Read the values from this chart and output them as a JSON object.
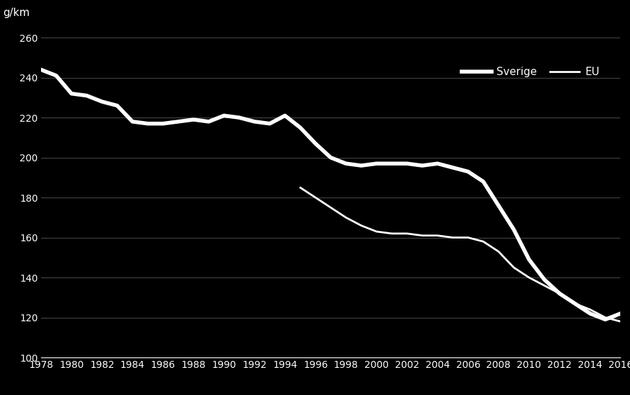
{
  "sverige": {
    "years": [
      1978,
      1979,
      1980,
      1981,
      1982,
      1983,
      1984,
      1985,
      1986,
      1987,
      1988,
      1989,
      1990,
      1991,
      1992,
      1993,
      1994,
      1995,
      1996,
      1997,
      1998,
      1999,
      2000,
      2001,
      2002,
      2003,
      2004,
      2005,
      2006,
      2007,
      2008,
      2009,
      2010,
      2011,
      2012,
      2013,
      2014,
      2015,
      2016
    ],
    "values": [
      244,
      241,
      232,
      231,
      228,
      226,
      218,
      217,
      217,
      218,
      219,
      218,
      221,
      220,
      218,
      217,
      221,
      215,
      207,
      200,
      197,
      196,
      197,
      197,
      197,
      196,
      197,
      195,
      193,
      188,
      176,
      164,
      149,
      139,
      132,
      127,
      122,
      119,
      122
    ]
  },
  "eu": {
    "years": [
      1995,
      1996,
      1997,
      1998,
      1999,
      2000,
      2001,
      2002,
      2003,
      2004,
      2005,
      2006,
      2007,
      2008,
      2009,
      2010,
      2011,
      2012,
      2013,
      2014,
      2015,
      2016
    ],
    "values": [
      185,
      180,
      175,
      170,
      166,
      163,
      162,
      162,
      161,
      161,
      160,
      160,
      158,
      153,
      145,
      140,
      136,
      132,
      127,
      124,
      120,
      118
    ]
  },
  "background_color": "#000000",
  "line_color_sverige": "#ffffff",
  "line_color_eu": "#ffffff",
  "ylabel": "g/km",
  "ylim": [
    100,
    265
  ],
  "xlim": [
    1978,
    2016
  ],
  "yticks": [
    100,
    120,
    140,
    160,
    180,
    200,
    220,
    240,
    260
  ],
  "xticks": [
    1978,
    1980,
    1982,
    1984,
    1986,
    1988,
    1990,
    1992,
    1994,
    1996,
    1998,
    2000,
    2002,
    2004,
    2006,
    2008,
    2010,
    2012,
    2014,
    2016
  ],
  "legend_labels": [
    "Sverige",
    "EU"
  ],
  "grid_color": "#4a4a4a",
  "tick_color": "#ffffff",
  "text_color": "#ffffff",
  "sverige_linewidth": 4.0,
  "eu_linewidth": 2.0,
  "ylabel_fontsize": 11,
  "tick_fontsize": 10,
  "legend_fontsize": 11
}
